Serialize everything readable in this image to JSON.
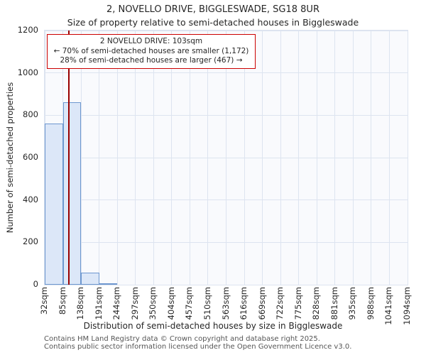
{
  "title": "2, NOVELLO DRIVE, BIGGLESWADE, SG18 8UR",
  "subtitle": "Size of property relative to semi-detached houses in Biggleswade",
  "annotation": {
    "line1": "2 NOVELLO DRIVE: 103sqm",
    "line2": "← 70% of semi-detached houses are smaller (1,172)",
    "line3": "28% of semi-detached houses are larger (467) →"
  },
  "footer": {
    "line1": "Contains HM Land Registry data © Crown copyright and database right 2025.",
    "line2": "Contains public sector information licensed under the Open Government Licence v3.0."
  },
  "chart_data": {
    "type": "bar",
    "title": "2, NOVELLO DRIVE, BIGGLESWADE, SG18 8UR",
    "subtitle": "Size of property relative to semi-detached houses in Biggleswade",
    "xlabel": "Distribution of semi-detached houses by size in Biggleswade",
    "ylabel": "Number of semi-detached properties",
    "bin_edges": [
      32,
      85,
      138,
      191,
      244,
      297,
      350,
      404,
      457,
      510,
      563,
      616,
      669,
      722,
      775,
      828,
      881,
      935,
      988,
      1041,
      1094
    ],
    "x_tick_labels": [
      "32sqm",
      "85sqm",
      "138sqm",
      "191sqm",
      "244sqm",
      "297sqm",
      "350sqm",
      "404sqm",
      "457sqm",
      "510sqm",
      "563sqm",
      "616sqm",
      "669sqm",
      "722sqm",
      "775sqm",
      "828sqm",
      "881sqm",
      "935sqm",
      "988sqm",
      "1041sqm",
      "1094sqm"
    ],
    "values": [
      761,
      862,
      58,
      8,
      0,
      0,
      0,
      0,
      0,
      0,
      0,
      0,
      0,
      0,
      0,
      0,
      0,
      0,
      0,
      0
    ],
    "ylim": [
      0,
      1200
    ],
    "y_ticks": [
      0,
      200,
      400,
      600,
      800,
      1000,
      1200
    ],
    "grid": true,
    "legend": "none",
    "marker_value": 103,
    "marker_label": "2 NOVELLO DRIVE: 103sqm",
    "colors": {
      "bar_fill": "#dce7f8",
      "bar_border": "#6d97cf",
      "marker_line": "#990000",
      "grid_line": "#dde4f0",
      "annotation_border": "#cc0000",
      "plot_background": "#f9fafd"
    }
  }
}
